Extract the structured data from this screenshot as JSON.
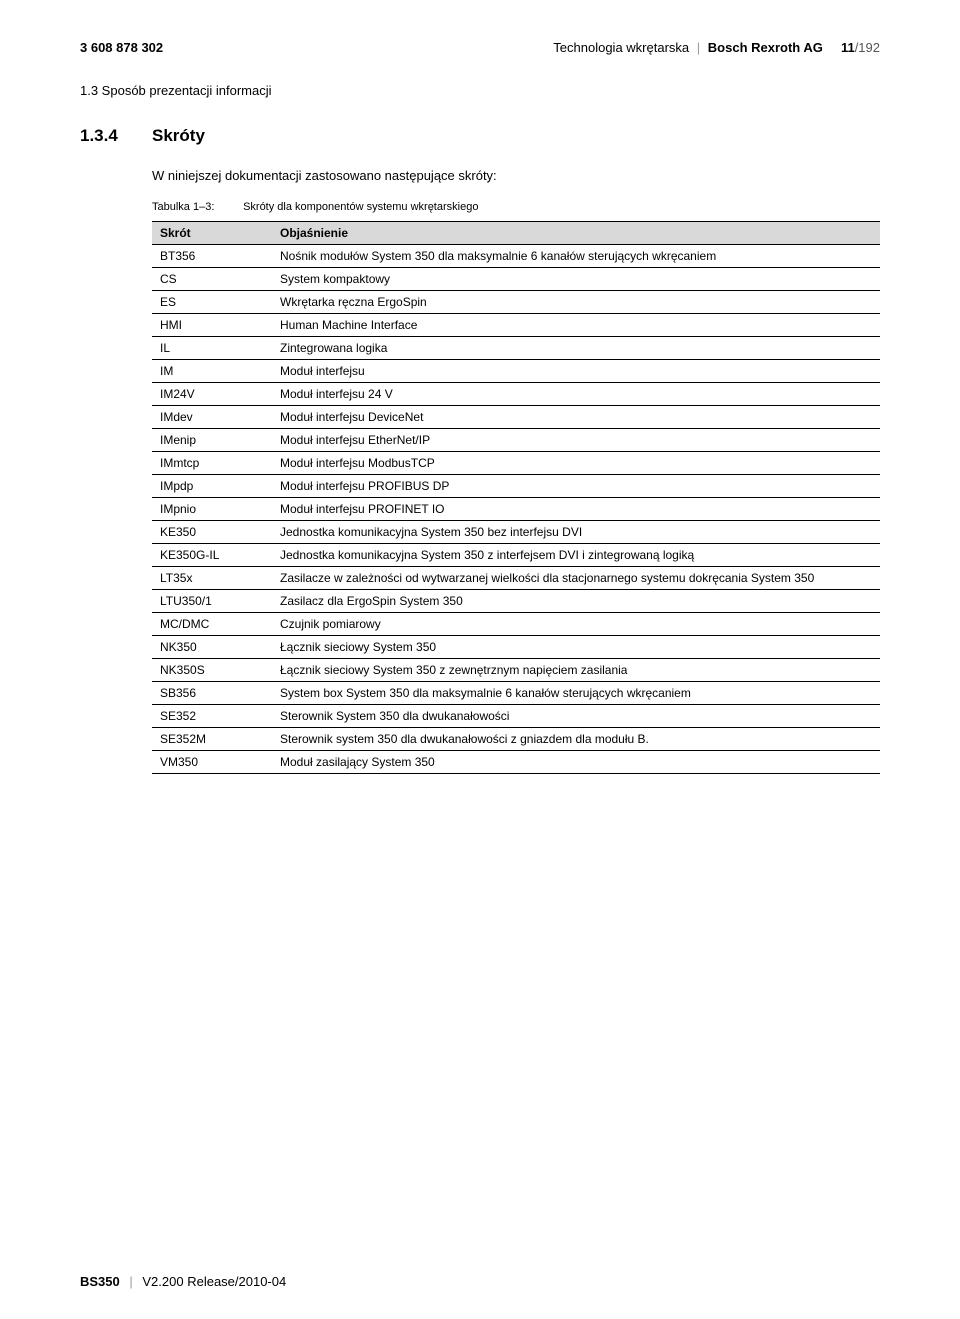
{
  "header": {
    "doc_number": "3 608 878 302",
    "subject": "Technologia wkrętarska",
    "brand": "Bosch Rexroth AG",
    "page_current": "11",
    "page_total": "/192"
  },
  "breadcrumb": "1.3  Sposób prezentacji informacji",
  "section": {
    "number": "1.3.4",
    "title": "Skróty"
  },
  "intro": "W niniejszej dokumentacji zastosowano następujące skróty:",
  "table": {
    "caption_label": "Tabulka 1–3:",
    "caption_text": "Skróty dla komponentów systemu wkrętarskiego",
    "columns": [
      "Skrót",
      "Objaśnienie"
    ],
    "rows": [
      [
        "BT356",
        "Nośnik modułów System 350 dla maksymalnie 6 kanałów sterujących wkręcaniem"
      ],
      [
        "CS",
        "System kompaktowy"
      ],
      [
        "ES",
        "Wkrętarka ręczna ErgoSpin"
      ],
      [
        "HMI",
        "Human Machine Interface"
      ],
      [
        "IL",
        "Zintegrowana logika"
      ],
      [
        "IM",
        "Moduł interfejsu"
      ],
      [
        "IM24V",
        "Moduł interfejsu 24 V"
      ],
      [
        "IMdev",
        "Moduł interfejsu DeviceNet"
      ],
      [
        "IMenip",
        "Moduł interfejsu EtherNet/IP"
      ],
      [
        "IMmtcp",
        "Moduł interfejsu ModbusTCP"
      ],
      [
        "IMpdp",
        "Moduł interfejsu PROFIBUS DP"
      ],
      [
        "IMpnio",
        "Moduł interfejsu PROFINET IO"
      ],
      [
        "KE350",
        "Jednostka komunikacyjna System 350 bez interfejsu DVI"
      ],
      [
        "KE350G-IL",
        "Jednostka komunikacyjna System 350 z interfejsem DVI i zintegrowaną logiką"
      ],
      [
        "LT35x",
        "Zasilacze w zależności od wytwarzanej wielkości dla stacjonarnego systemu dokręcania System 350"
      ],
      [
        "LTU350/1",
        "Zasilacz dla ErgoSpin System 350"
      ],
      [
        "MC/DMC",
        "Czujnik pomiarowy"
      ],
      [
        "NK350",
        "Łącznik sieciowy System 350"
      ],
      [
        "NK350S",
        "Łącznik sieciowy System 350 z zewnętrznym napięciem zasilania"
      ],
      [
        "SB356",
        "System box System 350 dla maksymalnie 6 kanałów sterujących wkręcaniem"
      ],
      [
        "SE352",
        "Sterownik System 350 dla dwukanałowości"
      ],
      [
        "SE352M",
        "Sterownik system 350 dla dwukanałowości z gniazdem dla modułu B."
      ],
      [
        "VM350",
        "Moduł zasilający System 350"
      ]
    ]
  },
  "footer": {
    "doc": "BS350",
    "version": "V2.200 Release/2010-04"
  }
}
